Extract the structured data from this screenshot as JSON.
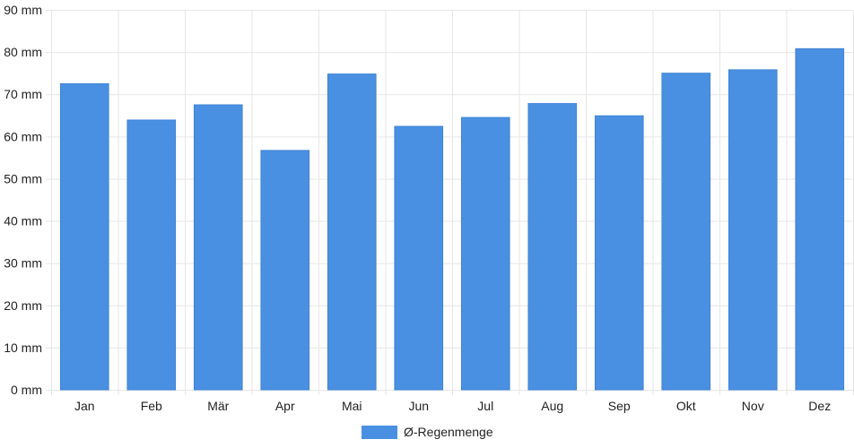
{
  "chart_data": {
    "type": "bar",
    "title": "",
    "xlabel": "",
    "ylabel": "",
    "categories": [
      "Jan",
      "Feb",
      "Mär",
      "Apr",
      "Mai",
      "Jun",
      "Jul",
      "Aug",
      "Sep",
      "Okt",
      "Nov",
      "Dez"
    ],
    "series": [
      {
        "name": "Ø-Regenmenge",
        "color": "#4a90e2",
        "values": [
          72.5,
          63.9,
          67.5,
          56.7,
          74.8,
          62.4,
          64.5,
          67.8,
          64.9,
          75.0,
          75.8,
          80.8
        ]
      }
    ],
    "ylim": [
      0,
      90
    ],
    "yticks": [
      0,
      10,
      20,
      30,
      40,
      50,
      60,
      70,
      80,
      90
    ],
    "ytick_suffix": " mm",
    "grid": true,
    "legend_position": "bottom-center",
    "colors": {
      "bar": "#4a90e2",
      "grid": "#e6e6e6",
      "text": "#222222"
    }
  }
}
